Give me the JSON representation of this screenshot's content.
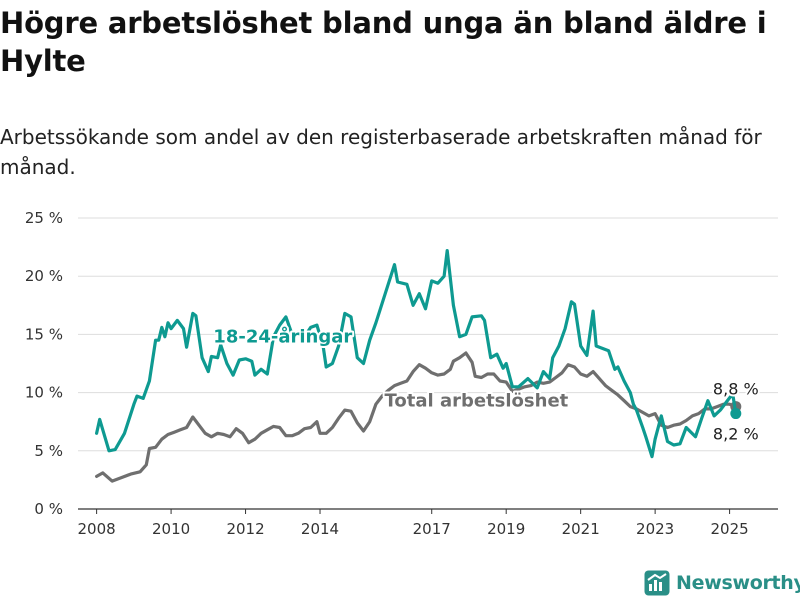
{
  "title": "Högre arbetslöshet bland unga än bland äldre i Hylte",
  "subtitle": "Arbetssökande som andel av den registerbaserade arbetskraften månad för månad.",
  "brand": "Newsworthy",
  "colors": {
    "youth": "#0e9a91",
    "total": "#6f6f6f",
    "grid": "#dddddd",
    "brand": "#2a8f87"
  },
  "chart_data": {
    "type": "line",
    "xlabel": "",
    "ylabel": "",
    "y_ticks": [
      0,
      5,
      10,
      15,
      20,
      25
    ],
    "y_tick_labels": [
      "0 %",
      "5 %",
      "10 %",
      "15 %",
      "20 %",
      "25 %"
    ],
    "ylim": [
      0,
      25
    ],
    "x_ticks": [
      2008,
      2010,
      2012,
      2014,
      2017,
      2019,
      2021,
      2023,
      2025
    ],
    "x_tick_labels": [
      "2008",
      "2010",
      "2012",
      "2014",
      "2017",
      "2019",
      "2021",
      "2023",
      "2025"
    ],
    "x_axis": "dates",
    "grid": true,
    "series": [
      {
        "name": "18-24-åringar",
        "label_value_end": "8,2 %",
        "points": [
          [
            "2008-01",
            6.5
          ],
          [
            "2008-02",
            7.7
          ],
          [
            "2008-05",
            5.0
          ],
          [
            "2008-07",
            5.1
          ],
          [
            "2008-10",
            6.5
          ],
          [
            "2009-01",
            9.0
          ],
          [
            "2009-02",
            9.7
          ],
          [
            "2009-04",
            9.5
          ],
          [
            "2009-06",
            11.0
          ],
          [
            "2009-08",
            14.5
          ],
          [
            "2009-09",
            14.5
          ],
          [
            "2009-10",
            15.6
          ],
          [
            "2009-11",
            14.8
          ],
          [
            "2009-12",
            16.0
          ],
          [
            "2010-01",
            15.5
          ],
          [
            "2010-03",
            16.2
          ],
          [
            "2010-05",
            15.5
          ],
          [
            "2010-06",
            13.9
          ],
          [
            "2010-08",
            16.8
          ],
          [
            "2010-09",
            16.6
          ],
          [
            "2010-11",
            13.0
          ],
          [
            "2011-01",
            11.8
          ],
          [
            "2011-02",
            13.1
          ],
          [
            "2011-04",
            13.0
          ],
          [
            "2011-05",
            14.1
          ],
          [
            "2011-07",
            12.5
          ],
          [
            "2011-09",
            11.5
          ],
          [
            "2011-11",
            12.8
          ],
          [
            "2012-01",
            12.9
          ],
          [
            "2012-03",
            12.7
          ],
          [
            "2012-04",
            11.5
          ],
          [
            "2012-06",
            12.0
          ],
          [
            "2012-08",
            11.6
          ],
          [
            "2012-10",
            14.8
          ],
          [
            "2012-12",
            15.8
          ],
          [
            "2013-02",
            16.5
          ],
          [
            "2013-04",
            15.0
          ],
          [
            "2013-06",
            15.2
          ],
          [
            "2013-08",
            14.8
          ],
          [
            "2013-10",
            15.6
          ],
          [
            "2013-12",
            15.8
          ],
          [
            "2014-02",
            14.0
          ],
          [
            "2014-03",
            12.2
          ],
          [
            "2014-05",
            12.5
          ],
          [
            "2014-07",
            14.0
          ],
          [
            "2014-09",
            16.8
          ],
          [
            "2014-11",
            16.5
          ],
          [
            "2015-01",
            13.0
          ],
          [
            "2015-03",
            12.5
          ],
          [
            "2015-05",
            14.5
          ],
          [
            "2015-07",
            16.0
          ],
          [
            "2015-10",
            18.5
          ],
          [
            "2016-01",
            21.0
          ],
          [
            "2016-02",
            19.5
          ],
          [
            "2016-05",
            19.3
          ],
          [
            "2016-07",
            17.5
          ],
          [
            "2016-09",
            18.5
          ],
          [
            "2016-11",
            17.2
          ],
          [
            "2017-01",
            19.6
          ],
          [
            "2017-03",
            19.4
          ],
          [
            "2017-05",
            20.0
          ],
          [
            "2017-06",
            22.2
          ],
          [
            "2017-08",
            17.5
          ],
          [
            "2017-10",
            14.8
          ],
          [
            "2017-12",
            15.0
          ],
          [
            "2018-02",
            16.5
          ],
          [
            "2018-05",
            16.6
          ],
          [
            "2018-06",
            16.2
          ],
          [
            "2018-08",
            13.0
          ],
          [
            "2018-10",
            13.3
          ],
          [
            "2018-12",
            12.1
          ],
          [
            "2019-01",
            12.5
          ],
          [
            "2019-03",
            10.5
          ],
          [
            "2019-05",
            10.5
          ],
          [
            "2019-08",
            11.2
          ],
          [
            "2019-11",
            10.4
          ],
          [
            "2020-01",
            11.8
          ],
          [
            "2020-03",
            11.2
          ],
          [
            "2020-04",
            13.0
          ],
          [
            "2020-06",
            14.0
          ],
          [
            "2020-08",
            15.5
          ],
          [
            "2020-10",
            17.8
          ],
          [
            "2020-11",
            17.6
          ],
          [
            "2021-01",
            14.0
          ],
          [
            "2021-03",
            13.2
          ],
          [
            "2021-05",
            17.0
          ],
          [
            "2021-06",
            14.0
          ],
          [
            "2021-08",
            13.8
          ],
          [
            "2021-10",
            13.6
          ],
          [
            "2021-12",
            12.0
          ],
          [
            "2022-01",
            12.2
          ],
          [
            "2022-03",
            11.0
          ],
          [
            "2022-05",
            10.0
          ],
          [
            "2022-06",
            9.0
          ],
          [
            "2022-07",
            8.5
          ],
          [
            "2022-09",
            7.0
          ],
          [
            "2022-10",
            6.2
          ],
          [
            "2022-12",
            4.5
          ],
          [
            "2023-01",
            6.0
          ],
          [
            "2023-03",
            8.0
          ],
          [
            "2023-05",
            5.8
          ],
          [
            "2023-07",
            5.5
          ],
          [
            "2023-09",
            5.6
          ],
          [
            "2023-11",
            7.0
          ],
          [
            "2024-02",
            6.2
          ],
          [
            "2024-04",
            7.8
          ],
          [
            "2024-06",
            9.3
          ],
          [
            "2024-08",
            8.0
          ],
          [
            "2024-10",
            8.5
          ],
          [
            "2024-12",
            9.2
          ],
          [
            "2025-02",
            9.9
          ],
          [
            "2025-03",
            8.2
          ]
        ]
      },
      {
        "name": "Total arbetslöshet",
        "label_value_end": "8,8 %",
        "points": [
          [
            "2008-01",
            2.8
          ],
          [
            "2008-03",
            3.1
          ],
          [
            "2008-06",
            2.4
          ],
          [
            "2008-09",
            2.7
          ],
          [
            "2008-12",
            3.0
          ],
          [
            "2009-03",
            3.2
          ],
          [
            "2009-05",
            3.8
          ],
          [
            "2009-06",
            5.2
          ],
          [
            "2009-08",
            5.3
          ],
          [
            "2009-10",
            6.0
          ],
          [
            "2009-12",
            6.4
          ],
          [
            "2010-02",
            6.6
          ],
          [
            "2010-04",
            6.8
          ],
          [
            "2010-06",
            7.0
          ],
          [
            "2010-08",
            7.9
          ],
          [
            "2010-10",
            7.2
          ],
          [
            "2010-12",
            6.5
          ],
          [
            "2011-02",
            6.2
          ],
          [
            "2011-04",
            6.5
          ],
          [
            "2011-06",
            6.4
          ],
          [
            "2011-08",
            6.2
          ],
          [
            "2011-10",
            6.9
          ],
          [
            "2011-12",
            6.5
          ],
          [
            "2012-02",
            5.7
          ],
          [
            "2012-04",
            6.0
          ],
          [
            "2012-06",
            6.5
          ],
          [
            "2012-08",
            6.8
          ],
          [
            "2012-10",
            7.1
          ],
          [
            "2012-12",
            7.0
          ],
          [
            "2013-02",
            6.3
          ],
          [
            "2013-04",
            6.3
          ],
          [
            "2013-06",
            6.5
          ],
          [
            "2013-08",
            6.9
          ],
          [
            "2013-10",
            7.0
          ],
          [
            "2013-12",
            7.5
          ],
          [
            "2014-01",
            6.5
          ],
          [
            "2014-03",
            6.5
          ],
          [
            "2014-05",
            7.0
          ],
          [
            "2014-07",
            7.8
          ],
          [
            "2014-09",
            8.5
          ],
          [
            "2014-11",
            8.4
          ],
          [
            "2015-01",
            7.4
          ],
          [
            "2015-03",
            6.7
          ],
          [
            "2015-05",
            7.5
          ],
          [
            "2015-07",
            9.0
          ],
          [
            "2015-09",
            9.7
          ],
          [
            "2015-11",
            10.2
          ],
          [
            "2016-01",
            10.6
          ],
          [
            "2016-03",
            10.8
          ],
          [
            "2016-05",
            11.0
          ],
          [
            "2016-07",
            11.8
          ],
          [
            "2016-09",
            12.4
          ],
          [
            "2016-11",
            12.1
          ],
          [
            "2017-01",
            11.7
          ],
          [
            "2017-03",
            11.5
          ],
          [
            "2017-05",
            11.6
          ],
          [
            "2017-07",
            12.0
          ],
          [
            "2017-08",
            12.7
          ],
          [
            "2017-10",
            13.0
          ],
          [
            "2017-12",
            13.4
          ],
          [
            "2018-02",
            12.6
          ],
          [
            "2018-03",
            11.4
          ],
          [
            "2018-05",
            11.3
          ],
          [
            "2018-07",
            11.6
          ],
          [
            "2018-09",
            11.6
          ],
          [
            "2018-11",
            11.0
          ],
          [
            "2019-01",
            10.9
          ],
          [
            "2019-03",
            10.1
          ],
          [
            "2019-05",
            10.3
          ],
          [
            "2019-07",
            10.5
          ],
          [
            "2019-09",
            10.6
          ],
          [
            "2019-11",
            10.9
          ],
          [
            "2020-01",
            10.8
          ],
          [
            "2020-03",
            10.9
          ],
          [
            "2020-05",
            11.3
          ],
          [
            "2020-07",
            11.7
          ],
          [
            "2020-09",
            12.4
          ],
          [
            "2020-11",
            12.2
          ],
          [
            "2021-01",
            11.6
          ],
          [
            "2021-03",
            11.4
          ],
          [
            "2021-05",
            11.8
          ],
          [
            "2021-07",
            11.2
          ],
          [
            "2021-09",
            10.6
          ],
          [
            "2021-11",
            10.2
          ],
          [
            "2022-01",
            9.8
          ],
          [
            "2022-03",
            9.3
          ],
          [
            "2022-05",
            8.8
          ],
          [
            "2022-07",
            8.6
          ],
          [
            "2022-09",
            8.3
          ],
          [
            "2022-11",
            8.0
          ],
          [
            "2023-01",
            8.2
          ],
          [
            "2023-03",
            7.2
          ],
          [
            "2023-05",
            7.0
          ],
          [
            "2023-07",
            7.2
          ],
          [
            "2023-09",
            7.3
          ],
          [
            "2023-11",
            7.6
          ],
          [
            "2024-01",
            8.0
          ],
          [
            "2024-03",
            8.2
          ],
          [
            "2024-05",
            8.6
          ],
          [
            "2024-07",
            8.6
          ],
          [
            "2024-09",
            8.8
          ],
          [
            "2024-11",
            9.0
          ],
          [
            "2025-01",
            9.0
          ],
          [
            "2025-03",
            8.8
          ]
        ]
      }
    ]
  }
}
